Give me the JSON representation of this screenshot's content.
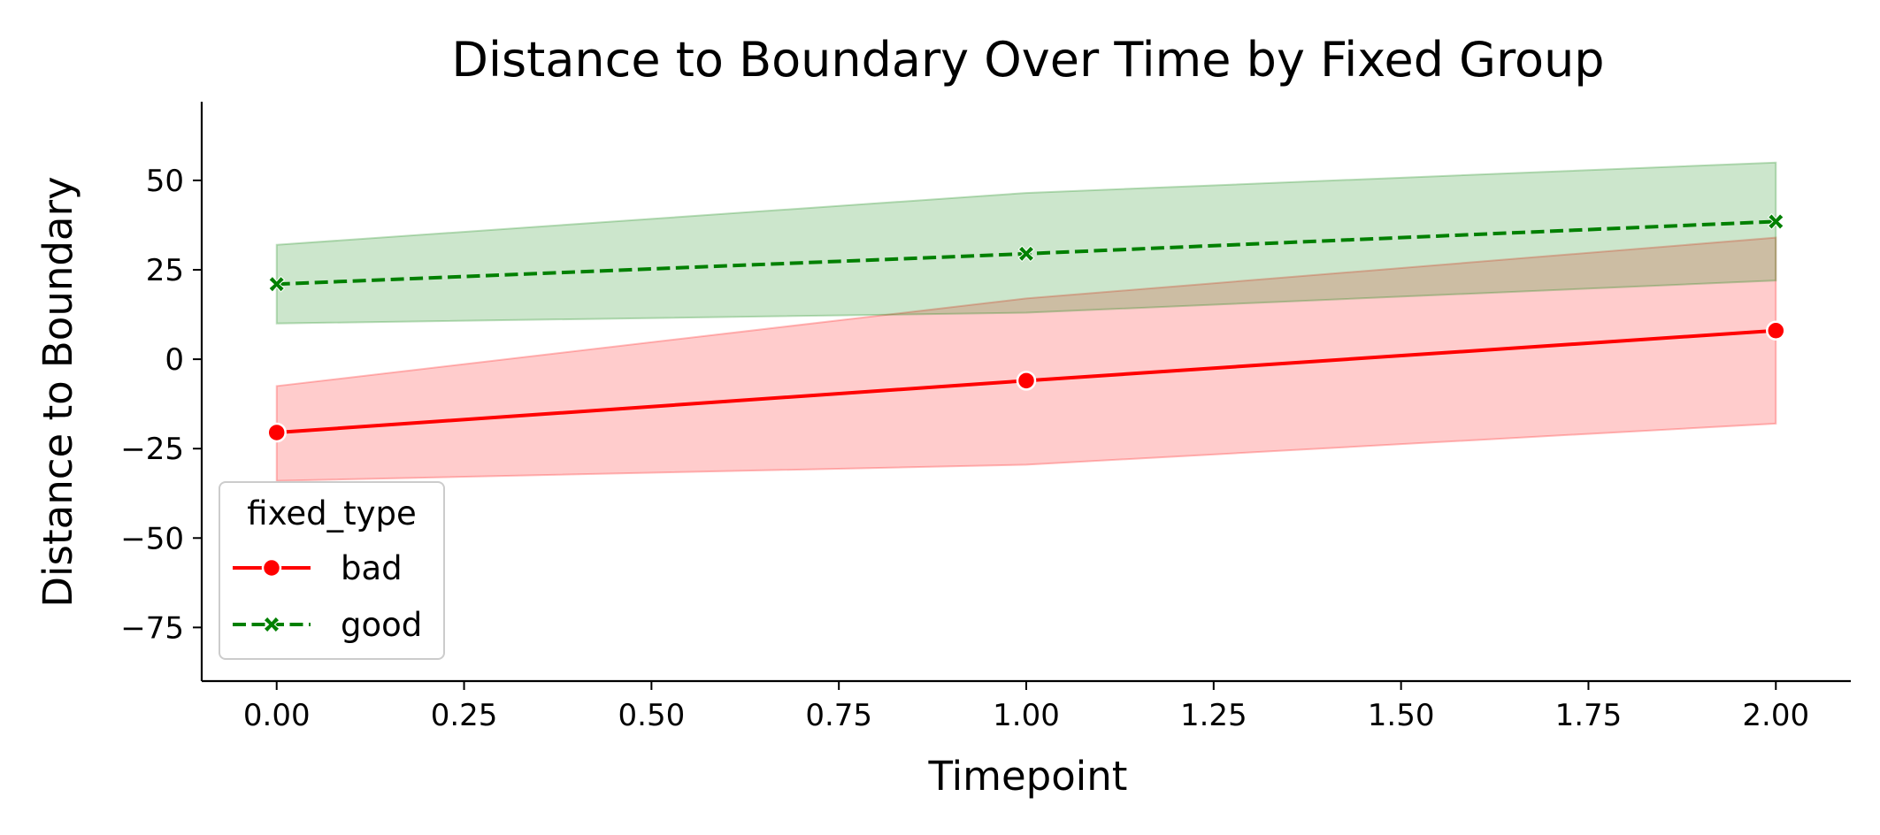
{
  "chart_data": {
    "type": "line",
    "title": "Distance to Boundary Over Time by Fixed Group",
    "xlabel": "Timepoint",
    "ylabel": "Distance to Boundary",
    "xlim": [
      -0.1,
      2.1
    ],
    "ylim": [
      -90,
      72
    ],
    "x_ticks": [
      0.0,
      0.25,
      0.5,
      0.75,
      1.0,
      1.25,
      1.5,
      1.75,
      2.0
    ],
    "x_tick_labels": [
      "0.00",
      "0.25",
      "0.50",
      "0.75",
      "1.00",
      "1.25",
      "1.50",
      "1.75",
      "2.00"
    ],
    "y_ticks": [
      50,
      25,
      0,
      -25,
      -50,
      -75
    ],
    "y_tick_labels": [
      "50",
      "25",
      "0",
      "−25",
      "−50",
      "−75"
    ],
    "grid": false,
    "legend": {
      "title": "fixed_type",
      "placement": "lower-left"
    },
    "x": [
      0,
      1,
      2
    ],
    "series": [
      {
        "name": "bad",
        "color": "#ff0000",
        "line_style": "solid",
        "marker": "circle",
        "values": [
          -20.5,
          -6.0,
          8.0
        ],
        "ci_lower": [
          -34.0,
          -29.5,
          -18.0
        ],
        "ci_upper": [
          -7.5,
          17.0,
          34.0
        ]
      },
      {
        "name": "good",
        "color": "#008000",
        "line_style": "dashed",
        "marker": "x",
        "values": [
          21.0,
          29.5,
          38.5
        ],
        "ci_lower": [
          10.0,
          13.0,
          22.0
        ],
        "ci_upper": [
          32.0,
          46.5,
          55.0
        ]
      }
    ]
  }
}
